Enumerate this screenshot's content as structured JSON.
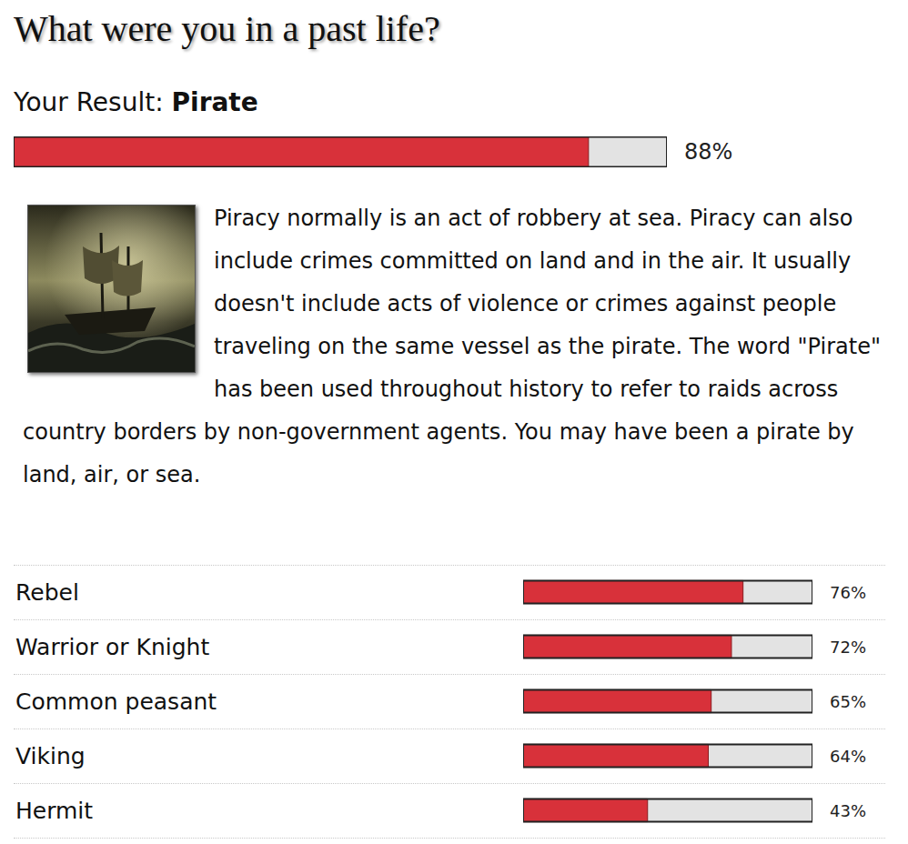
{
  "title": "What were you in a past life?",
  "result_label": "Your Result:",
  "description": "Piracy normally is an act of robbery at sea. Piracy can also include crimes committed on land and in the air. It usually doesn't include acts of violence or crimes against people traveling on the same vessel as the pirate. The word \"Pirate\" has been used throughout history to refer to raids across country borders by non-government agents. You may have been a pirate by land, air, or sea.",
  "chart_data": [
    {
      "type": "bar",
      "orientation": "horizontal",
      "categories": [
        "Pirate"
      ],
      "values": [
        88
      ],
      "value_labels": [
        "88%"
      ],
      "xlim": [
        0,
        100
      ],
      "data_labels": true,
      "color": "#d8313a"
    },
    {
      "type": "bar",
      "orientation": "horizontal",
      "categories": [
        "Rebel",
        "Warrior or Knight",
        "Common peasant",
        "Viking",
        "Hermit"
      ],
      "values": [
        76,
        72,
        65,
        64,
        43
      ],
      "value_labels": [
        "76%",
        "72%",
        "65%",
        "64%",
        "43%"
      ],
      "xlim": [
        0,
        100
      ],
      "data_labels": true,
      "color": "#d8313a"
    }
  ]
}
